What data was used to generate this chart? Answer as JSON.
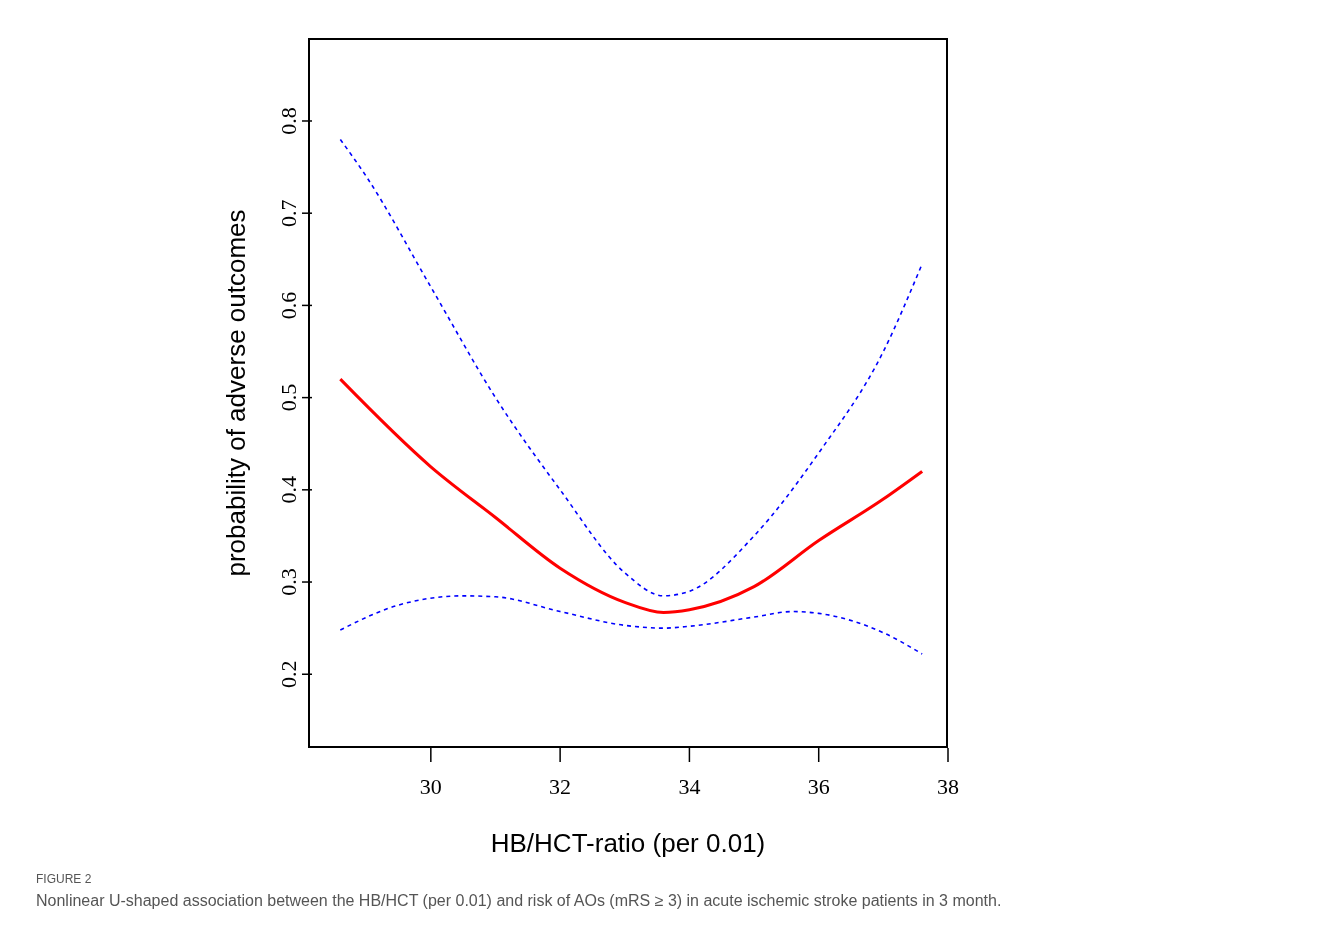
{
  "chart_data": {
    "type": "line",
    "xlabel": "HB/HCT-ratio (per 0.01)",
    "ylabel": "probability of adverse outcomes",
    "xlim": [
      28.1,
      38
    ],
    "xticks": [
      30,
      32,
      34,
      36,
      38
    ],
    "ylim": [
      0.12,
      0.89
    ],
    "yticks": [
      0.2,
      0.3,
      0.4,
      0.5,
      0.6,
      0.7,
      0.8
    ],
    "marker": "none",
    "series": [
      {
        "color": "#0000ff",
        "line_style": "dashed",
        "x": [
          28.6,
          29,
          30,
          31,
          32,
          33,
          33.6,
          34,
          35,
          36,
          37,
          37.6
        ],
        "values": [
          0.78,
          0.74,
          0.62,
          0.5,
          0.4,
          0.31,
          0.285,
          0.29,
          0.35,
          0.44,
          0.55,
          0.645
        ]
      },
      {
        "color": "#ff0000",
        "line_style": "solid",
        "x": [
          28.6,
          30,
          31,
          32,
          33,
          33.6,
          34,
          35,
          36,
          37,
          37.6
        ],
        "values": [
          0.52,
          0.425,
          0.37,
          0.315,
          0.278,
          0.267,
          0.27,
          0.295,
          0.345,
          0.39,
          0.42
        ]
      },
      {
        "color": "#0000ff",
        "line_style": "dashed",
        "x": [
          28.6,
          29.5,
          30.5,
          31,
          32,
          33,
          33.6,
          34,
          35,
          35.6,
          36,
          37,
          37.6
        ],
        "values": [
          0.248,
          0.275,
          0.285,
          0.284,
          0.268,
          0.253,
          0.25,
          0.252,
          0.262,
          0.268,
          0.266,
          0.245,
          0.222
        ]
      }
    ],
    "annotations": [
      "FIGURE 2",
      "Nonlinear U-shaped association between the HB/HCT (per 0.01) and risk of AOs (mRS ≥ 3) in acute ischemic stroke patients in 3 month."
    ]
  }
}
